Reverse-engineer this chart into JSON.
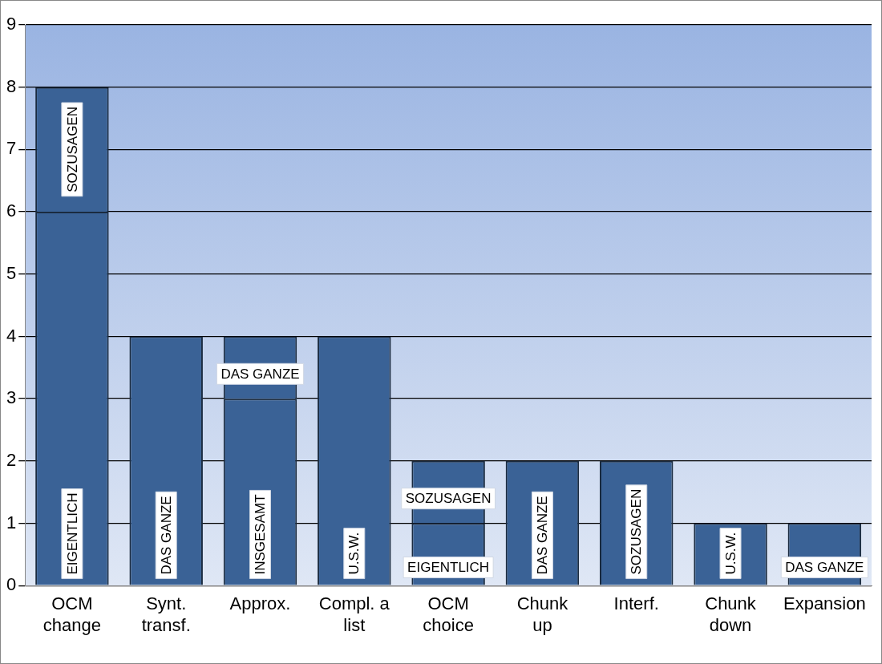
{
  "chart_data": {
    "type": "bar",
    "stacked": true,
    "categories": [
      "OCM change",
      "Synt. transf.",
      "Approx.",
      "Compl. a list",
      "OCM choice",
      "Chunk up",
      "Interf.",
      "Chunk down",
      "Expansion"
    ],
    "series": [
      {
        "color": "#3a6296",
        "values": [
          6,
          4,
          3,
          4,
          1,
          2,
          2,
          1,
          1
        ],
        "value_labels": [
          "EIGENTLICH",
          "DAS GANZE",
          "INSGESAMT",
          "U.S.W.",
          "EIGENTLICH",
          "DAS GANZE",
          "SOZUSAGEN",
          "U.S.W.",
          "DAS GANZE"
        ]
      },
      {
        "color": "#3a6296",
        "values": [
          2,
          null,
          1,
          null,
          1,
          null,
          null,
          null,
          null
        ],
        "value_labels": [
          "SOZUSAGEN",
          null,
          "DAS GANZE",
          null,
          "SOZUSAGEN",
          null,
          null,
          null,
          null
        ]
      }
    ],
    "ylim": [
      0,
      9
    ],
    "yticks": [
      0,
      1,
      2,
      3,
      4,
      5,
      6,
      7,
      8,
      9
    ],
    "grid": "y"
  }
}
